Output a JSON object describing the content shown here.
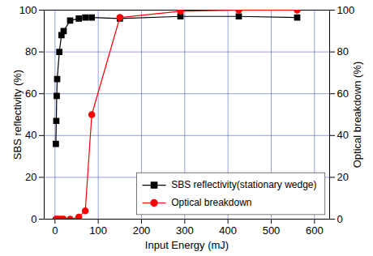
{
  "chart_data": {
    "type": "line",
    "x_label": "Input Energy (mJ)",
    "y_label": "SBS reflectivity (%)",
    "y2_label": "Optical breakdown (%)",
    "xlim": [
      -25,
      635
    ],
    "xticks": [
      0,
      100,
      200,
      300,
      400,
      500,
      600
    ],
    "ylim": [
      0,
      100
    ],
    "yticks": [
      0,
      20,
      40,
      60,
      80,
      100
    ],
    "y2lim": [
      0,
      100
    ],
    "y2ticks": [
      0,
      20,
      40,
      60,
      80,
      100
    ],
    "grid": true,
    "legend": "lower right",
    "series": [
      {
        "name": "SBS reflectivity(stationary wedge)",
        "color": "#000000",
        "marker": "square",
        "line_style": "solid",
        "x": [
          2,
          3,
          4,
          5,
          10,
          15,
          20,
          35,
          55,
          70,
          85,
          150,
          290,
          425,
          560
        ],
        "values": [
          36,
          47,
          59,
          67,
          80,
          88,
          90,
          95,
          96,
          96.5,
          96.5,
          96,
          97,
          97,
          96.5
        ]
      },
      {
        "name": "Optical breakdown",
        "color": "#ff0000",
        "marker": "circle",
        "line_style": "solid",
        "axis": "y2",
        "x": [
          2,
          5,
          10,
          15,
          20,
          35,
          55,
          70,
          85,
          150,
          290,
          425,
          560
        ],
        "values": [
          0,
          0,
          0,
          0,
          0,
          0,
          1,
          4,
          50,
          96.5,
          99.5,
          100,
          100
        ]
      }
    ]
  }
}
